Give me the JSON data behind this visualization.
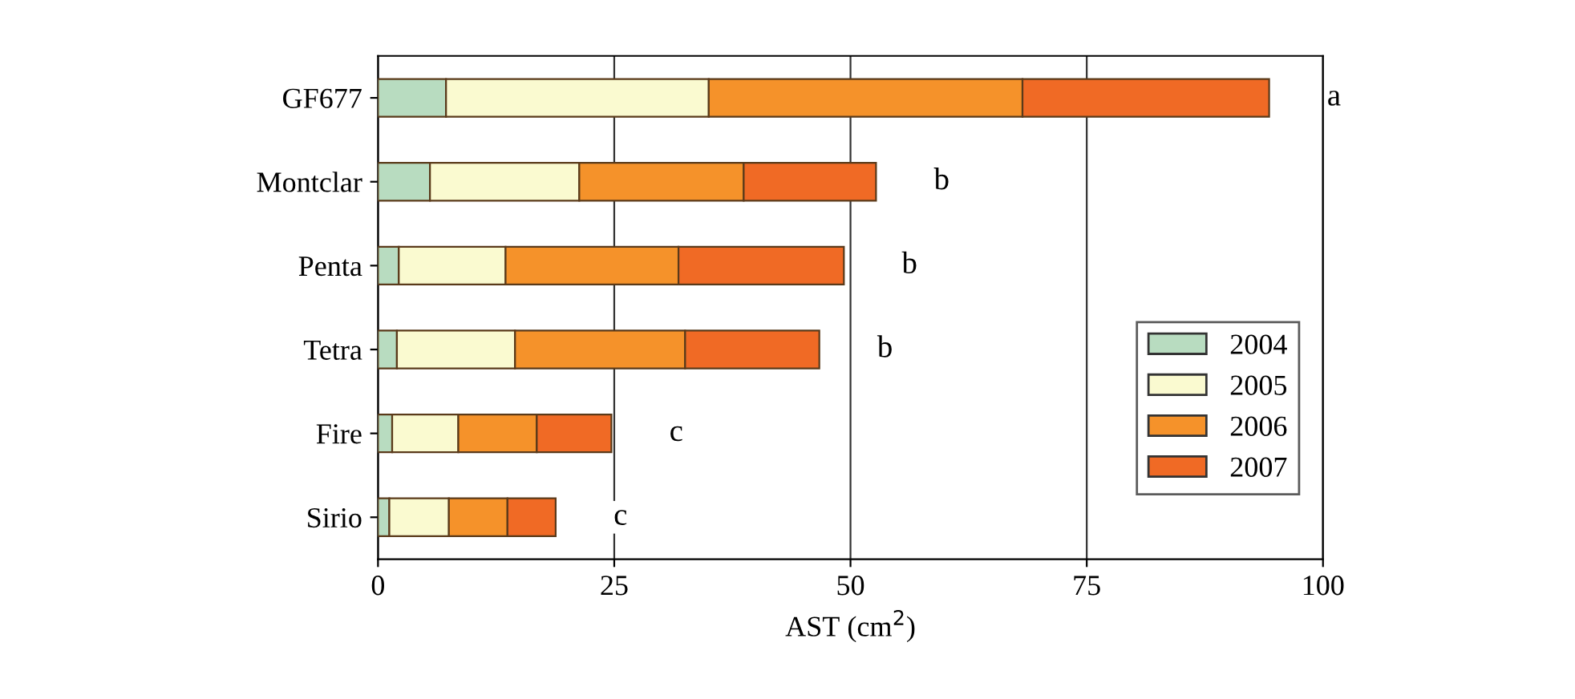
{
  "chart_data": {
    "type": "bar",
    "orientation": "horizontal",
    "stacked": true,
    "categories": [
      "GF677",
      "Montclar",
      "Penta",
      "Tetra",
      "Fire",
      "Sirio"
    ],
    "series": [
      {
        "name": "2004",
        "color": "#b8dcc0",
        "values": [
          7.2,
          5.5,
          2.2,
          2,
          1.5,
          1.2
        ]
      },
      {
        "name": "2005",
        "color": "#fafad0",
        "values": [
          27.8,
          15.8,
          11.3,
          12.5,
          7,
          6.3
        ]
      },
      {
        "name": "2006",
        "color": "#f5922a",
        "values": [
          33.2,
          17.4,
          18.3,
          18,
          8.3,
          6.2
        ]
      },
      {
        "name": "2007",
        "color": "#f06a25",
        "values": [
          26.1,
          14,
          17.5,
          14.2,
          7.9,
          5.1
        ]
      }
    ],
    "xlabel": "AST (cm$^{2}$)",
    "xlim": [
      0,
      100
    ],
    "xticks": [
      0,
      25,
      50,
      75,
      100
    ],
    "grid": "x",
    "legend": "right",
    "annotations": [
      "a",
      "b",
      "b",
      "b",
      "c",
      "c"
    ]
  }
}
